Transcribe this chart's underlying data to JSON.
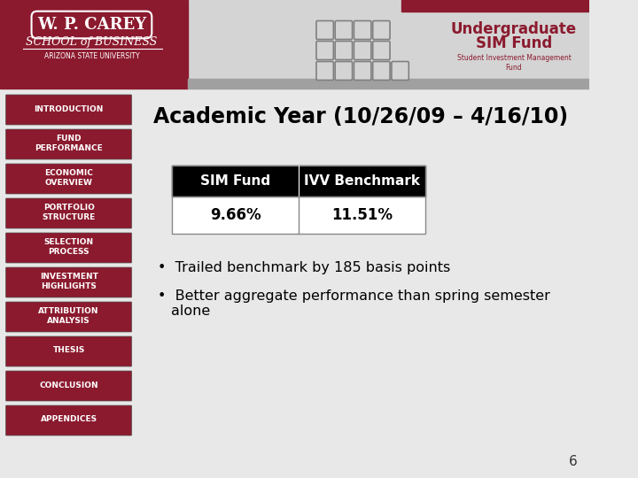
{
  "bg_color": "#e8e8e8",
  "header_left_color": "#8b1a2e",
  "header_right_color": "#d4d4d4",
  "header_dark_strip_color": "#8b1a2e",
  "header_gray_strip_color": "#a0a0a0",
  "sidebar_button_color": "#8b1a2e",
  "sidebar_buttons": [
    "INTRODUCTION",
    "FUND\nPERFORMANCE",
    "ECONOMIC\nOVERVIEW",
    "PORTFOLIO\nSTRUCTURE",
    "SELECTION\nPROCESS",
    "INVESTMENT\nHIGHLIGHTS",
    "ATTRIBUTION\nANALYSIS",
    "THESIS",
    "CONCLUSION",
    "APPENDICES"
  ],
  "title": "Academic Year (10/26/09 – 4/16/10)",
  "title_color": "#000000",
  "table_header_bg": "#000000",
  "table_header_text": "#ffffff",
  "table_col1_header": "SIM Fund",
  "table_col2_header": "IVV Benchmark",
  "table_val1": "9.66%",
  "table_val2": "11.51%",
  "table_val_color": "#000000",
  "bullet1": "Trailed benchmark by 185 basis points",
  "bullet2a": "Better aggregate performance than spring semester",
  "bullet2b": "alone",
  "bullet_color": "#000000",
  "logo_text1": "W. P. CAREY",
  "logo_text2": "SCHOOL of BUSINESS",
  "logo_text3": "ARIZONA STATE UNIVERSITY",
  "brand_title1": "Undergraduate",
  "brand_title2": "SIM Fund",
  "brand_subtitle": "Student Investment Management\nFund",
  "brand_color": "#8b1a2e",
  "page_number": "6",
  "grid_color": "#808080",
  "active_button_index": 1
}
